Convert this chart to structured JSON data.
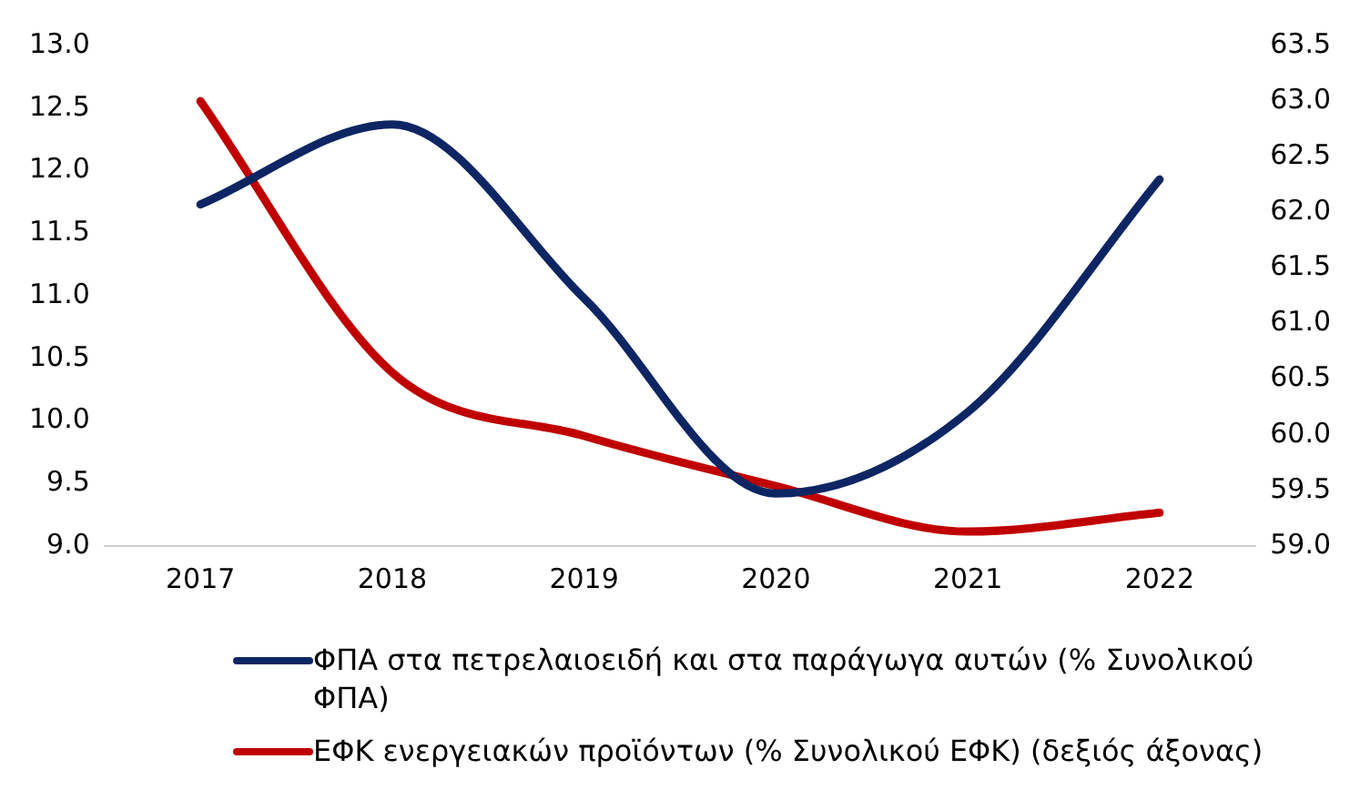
{
  "chart_data": {
    "type": "line",
    "categories": [
      "2017",
      "2018",
      "2019",
      "2020",
      "2021",
      "2022"
    ],
    "series": [
      {
        "name": "ΦΠΑ στα πετρελαιοειδή και στα παράγωγα αυτών (% Συνολικού ΦΠΑ)",
        "color": "#0d2663",
        "values": [
          11.73,
          12.37,
          10.98,
          9.42,
          10.07,
          11.93
        ]
      },
      {
        "name": "ΕΦΚ ενεργειακών προϊόντων (% Συνολικού ΕΦΚ) (δεξιός άξονας)",
        "color": "#c00000",
        "axis": "y2",
        "values": [
          63.0,
          60.56,
          59.99,
          59.54,
          59.13,
          59.3
        ]
      }
    ],
    "ylim": [
      9,
      13
    ],
    "yticks": [
      {
        "value": 9,
        "label": "9.0"
      },
      {
        "value": 9.5,
        "label": "9.5"
      },
      {
        "value": 10,
        "label": "10.0"
      },
      {
        "value": 10.5,
        "label": "10.5"
      },
      {
        "value": 11,
        "label": "11.0"
      },
      {
        "value": 11.5,
        "label": "11.5"
      },
      {
        "value": 12,
        "label": "12.0"
      },
      {
        "value": 12.5,
        "label": "12.5"
      },
      {
        "value": 13,
        "label": "13.0"
      }
    ],
    "y2lim": [
      59,
      63.5
    ],
    "y2ticks": [
      {
        "value": 59,
        "label": "59.0"
      },
      {
        "value": 59.5,
        "label": "59.5"
      },
      {
        "value": 60,
        "label": "60.0"
      },
      {
        "value": 60.5,
        "label": "60.5"
      },
      {
        "value": 61,
        "label": "61.0"
      },
      {
        "value": 61.5,
        "label": "61.5"
      },
      {
        "value": 62,
        "label": "62.0"
      },
      {
        "value": 62.5,
        "label": "62.5"
      },
      {
        "value": 63,
        "label": "63.0"
      },
      {
        "value": 63.5,
        "label": "63.5"
      }
    ],
    "grid": false,
    "legend": "bottom",
    "marker": "none",
    "line_style": "solid"
  }
}
